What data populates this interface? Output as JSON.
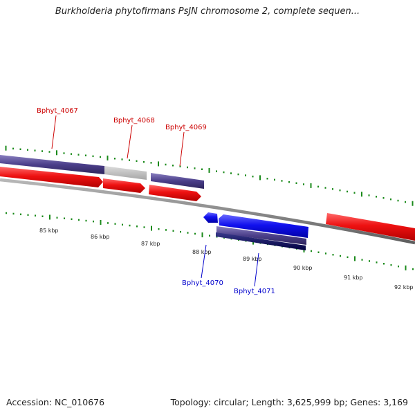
{
  "title": "Burkholderia phytofirmans PsJN chromosome 2, complete sequen...",
  "footer": {
    "accession": "Accession: NC_010676",
    "topology": "Topology: circular; Length: 3,625,999 bp; Genes: 3,169"
  },
  "scale_labels": [
    "85 kbp",
    "86 kbp",
    "87 kbp",
    "88 kbp",
    "89 kbp",
    "90 kbp",
    "91 kbp",
    "92 kbp"
  ],
  "gene_labels": [
    {
      "text": "Bphyt_4067",
      "strand": "forward"
    },
    {
      "text": "Bphyt_4068",
      "strand": "forward"
    },
    {
      "text": "Bphyt_4069",
      "strand": "forward"
    },
    {
      "text": "Bphyt_4070",
      "strand": "reverse"
    },
    {
      "text": "Bphyt_4071",
      "strand": "reverse"
    }
  ],
  "colors": {
    "forward_label": "#cc0000",
    "reverse_label": "#0000cc",
    "forward_gene": "#ee1111",
    "reverse_gene": "#1111ee",
    "cds_purple": "#4b3f8a",
    "cds_gray": "#b5b5b5",
    "cds_navy": "#00005e",
    "backbone": "#808080",
    "ticks": "#1a8a1a"
  }
}
